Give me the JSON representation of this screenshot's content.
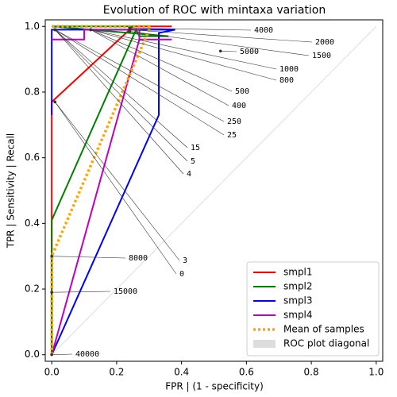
{
  "chart_data": {
    "type": "line",
    "title": "Evolution of ROC with mintaxa variation",
    "xlabel": "FPR | (1 - specificity)",
    "ylabel": "TPR | Sensitivity | Recall",
    "xlim": [
      -0.02,
      1.02
    ],
    "ylim": [
      -0.02,
      1.02
    ],
    "xticks": [
      {
        "value": 0,
        "label": "0.0"
      },
      {
        "value": 0.2,
        "label": "0.2"
      },
      {
        "value": 0.4,
        "label": "0.4"
      },
      {
        "value": 0.6,
        "label": "0.6"
      },
      {
        "value": 0.8,
        "label": "0.8"
      },
      {
        "value": 1,
        "label": "1.0"
      }
    ],
    "yticks": [
      {
        "value": 0,
        "label": "0.0"
      },
      {
        "value": 0.2,
        "label": "0.2"
      },
      {
        "value": 0.4,
        "label": "0.4"
      },
      {
        "value": 0.6,
        "label": "0.6"
      },
      {
        "value": 0.8,
        "label": "0.8"
      },
      {
        "value": 1,
        "label": "1.0"
      }
    ],
    "legend": "lower right",
    "series": [
      {
        "name": "smpl1",
        "color": "#ff0000",
        "linestyle": "solid",
        "x": [
          0,
          0,
          0.24,
          0.25,
          0.37
        ],
        "y": [
          0,
          0.77,
          0.99,
          1.0,
          1.0
        ]
      },
      {
        "name": "smpl2",
        "color": "#008000",
        "linestyle": "solid",
        "x": [
          0,
          0,
          0.26,
          0.27,
          0.36,
          0,
          0.26
        ],
        "y": [
          0,
          0.41,
          0.99,
          0.97,
          0.97,
          1.0,
          1.0
        ]
      },
      {
        "name": "smpl3",
        "color": "#0000ff",
        "linestyle": "solid",
        "x": [
          0,
          0.33,
          0.33,
          0.38,
          0,
          0
        ],
        "y": [
          0,
          0.73,
          0.98,
          0.99,
          0.99,
          0.73
        ]
      },
      {
        "name": "smpl4",
        "color": "#bf00bf",
        "linestyle": "solid",
        "x": [
          0,
          0.27,
          0.37,
          0.27,
          0.27,
          0.1,
          0.1,
          0
        ],
        "y": [
          0,
          0.96,
          0.96,
          0.96,
          0.99,
          0.99,
          0.96,
          0.96
        ]
      },
      {
        "name": "Mean of samples",
        "color": "#ffa500",
        "linestyle": "dotted",
        "x": [
          0,
          0,
          0.3,
          0.3,
          0
        ],
        "y": [
          0,
          0.3,
          0.99,
          1.0,
          1.0
        ]
      },
      {
        "name": "ROC plot diagonal",
        "color": "#dddddd",
        "linestyle": "patch",
        "x": [
          0,
          1
        ],
        "y": [
          0,
          1
        ]
      }
    ],
    "annotations": [
      {
        "text": "4000",
        "xy": [
          0.24,
          0.995
        ]
      },
      {
        "text": "2000",
        "xy": [
          0.24,
          0.99
        ]
      },
      {
        "text": "1500",
        "xy": [
          0.24,
          0.985
        ]
      },
      {
        "text": "5000",
        "xy": [
          0.52,
          0.925
        ]
      },
      {
        "text": "1000",
        "xy": [
          0.12,
          0.99
        ]
      },
      {
        "text": "800",
        "xy": [
          0.12,
          0.99
        ]
      },
      {
        "text": "500",
        "xy": [
          0.12,
          0.99
        ]
      },
      {
        "text": "400",
        "xy": [
          0.12,
          0.99
        ]
      },
      {
        "text": "250",
        "xy": [
          0.01,
          0.99
        ]
      },
      {
        "text": "25",
        "xy": [
          0.01,
          0.99
        ]
      },
      {
        "text": "15",
        "xy": [
          0.01,
          0.99
        ]
      },
      {
        "text": "5",
        "xy": [
          0.01,
          0.99
        ]
      },
      {
        "text": "4",
        "xy": [
          0.01,
          0.99
        ]
      },
      {
        "text": "3",
        "xy": [
          0.01,
          0.77
        ]
      },
      {
        "text": "0",
        "xy": [
          0.01,
          0.77
        ]
      },
      {
        "text": "8000",
        "xy": [
          0,
          0.3
        ]
      },
      {
        "text": "15000",
        "xy": [
          0,
          0.19
        ]
      },
      {
        "text": "40000",
        "xy": [
          0,
          0
        ]
      }
    ]
  }
}
